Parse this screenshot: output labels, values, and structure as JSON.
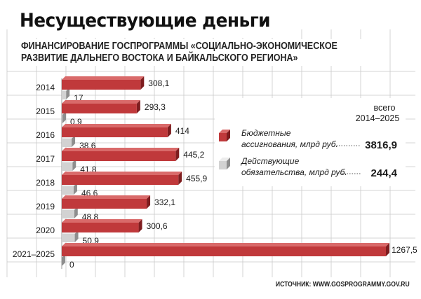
{
  "header": {
    "title": "Несуществующие деньги",
    "subtitle_line1": "ФИНАНСИРОВАНИЕ ГОСПРОГРАММЫ «СОЦИАЛЬНО-ЭКОНОМИЧЕСКОЕ",
    "subtitle_line2": "РАЗВИТИЕ ДАЛЬНЕГО ВОСТОКА И БАЙКАЛЬСКОГО РЕГИОНА»"
  },
  "source": "ИСТОЧНИК: WWW.GOSPROGRAMMY.GOV.RU",
  "colors": {
    "budget": "#c0393b",
    "budget_side": "#7e1d1f",
    "budget_top": "#d96a6a",
    "obligations": "#d2d2d2",
    "obligations_side": "#8e8e8e",
    "obligations_top": "#ececec",
    "grid": "#c9c9c9"
  },
  "chart_data": {
    "type": "bar",
    "orientation": "horizontal",
    "categories": [
      "2014",
      "2015",
      "2016",
      "2017",
      "2018",
      "2019",
      "2020",
      "2021–2025"
    ],
    "series": [
      {
        "name": "Бюджетные ассигнования, млрд руб.",
        "values": [
          308.1,
          293.3,
          414,
          445.2,
          455.9,
          332.1,
          300.6,
          1267.5
        ],
        "labels": [
          "308,1",
          "293,3",
          "414",
          "445,2",
          "455,9",
          "332,1",
          "300,6",
          "1267,5"
        ]
      },
      {
        "name": "Действующие обязательства, млрд руб.",
        "values": [
          17,
          0.9,
          38.6,
          41.8,
          46.6,
          48.8,
          50.9,
          0
        ],
        "labels": [
          "17",
          "0,9",
          "38,6",
          "41,8",
          "46,6",
          "48,8",
          "50,9",
          "0"
        ]
      }
    ],
    "xlim": [
      0,
      1267.5
    ],
    "grid": true,
    "legend": {
      "placement": "right",
      "total_caption_line1": "всего",
      "total_caption_line2": "2014–2025",
      "items": [
        {
          "label_line1": "Бюджетные",
          "label_line2": "ассигнования, млрд руб.",
          "total": "3816,9"
        },
        {
          "label_line1": "Действующие",
          "label_line2": "обязательства, млрд руб.",
          "total": "244,4"
        }
      ]
    }
  }
}
